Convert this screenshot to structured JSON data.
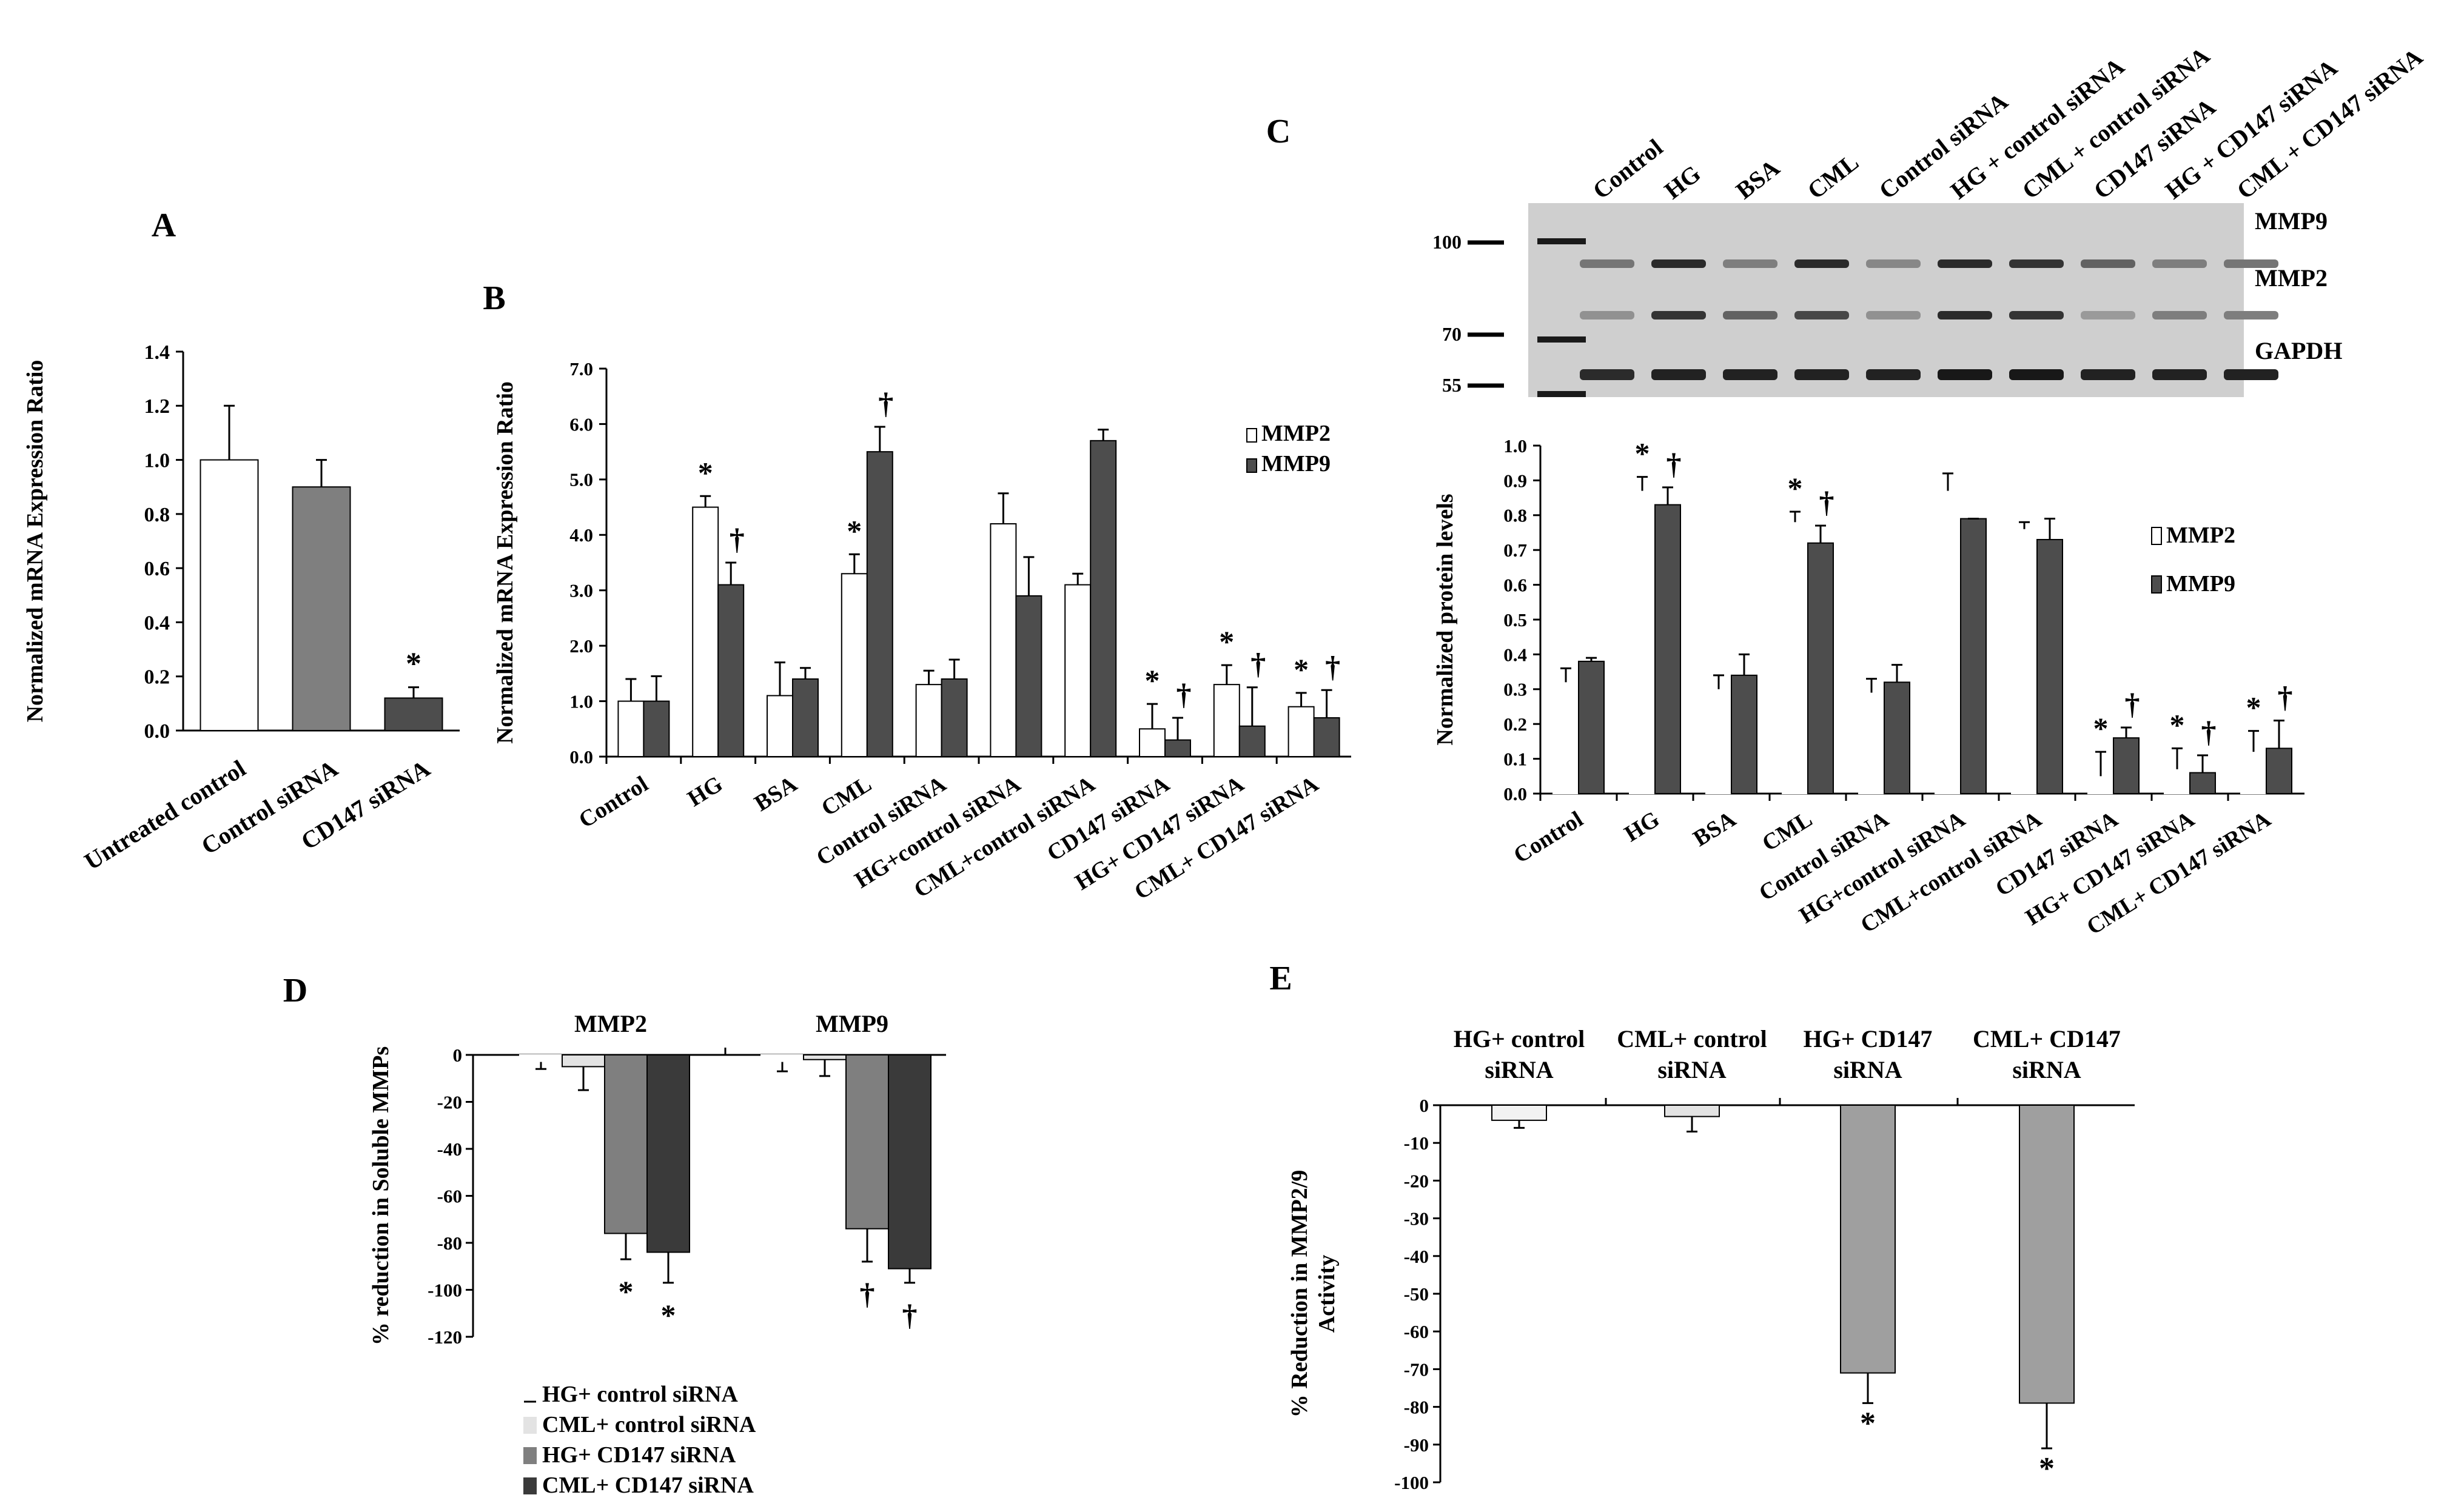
{
  "colors": {
    "white": "#ffffff",
    "gray": "#7f7f7f",
    "dark": "#4d4d4d",
    "mid": "#9f9f9f",
    "darkest": "#3a3a3a",
    "light": "#e3e3e3",
    "verylight": "#f2f2f2",
    "blot_bg": "#cfcfcf",
    "band": "#1a1a1a"
  },
  "chart_data": [
    {
      "panel": "A",
      "type": "bar",
      "ylabel": "Normalized mRNA Expression Ratio",
      "ylim": [
        0,
        1.4
      ],
      "yticks": [
        "0.0",
        "0.2",
        "0.4",
        "0.6",
        "0.8",
        "1.0",
        "1.2",
        "1.4"
      ],
      "categories": [
        "Untreated control",
        "Control siRNA",
        "CD147 siRNA"
      ],
      "values": [
        1.0,
        0.9,
        0.12
      ],
      "errors": [
        0.2,
        0.1,
        0.04
      ],
      "bar_colors": [
        "#ffffff",
        "#7f7f7f",
        "#4d4d4d"
      ],
      "marks": [
        "",
        "",
        "*"
      ]
    },
    {
      "panel": "B",
      "type": "bar",
      "ylabel": "Normalized mRNA Expression Ratio",
      "ylim": [
        0,
        7
      ],
      "yticks": [
        "0.0",
        "1.0",
        "2.0",
        "3.0",
        "4.0",
        "5.0",
        "6.0",
        "7.0"
      ],
      "categories": [
        "Control",
        "HG",
        "BSA",
        "CML",
        "Control siRNA",
        "HG+control siRNA",
        "CML+control siRNA",
        "CD147 siRNA",
        "HG+ CD147 siRNA",
        "CML+ CD147 siRNA"
      ],
      "legend": [
        "MMP2",
        "MMP9"
      ],
      "series": [
        {
          "name": "MMP2",
          "values": [
            1.0,
            4.5,
            1.1,
            3.3,
            1.3,
            4.2,
            3.1,
            0.5,
            1.3,
            0.9
          ],
          "errors": [
            0.4,
            0.2,
            0.6,
            0.35,
            0.25,
            0.55,
            0.2,
            0.45,
            0.35,
            0.25
          ],
          "marks": [
            "",
            "*",
            "",
            "*",
            "",
            "",
            "",
            "*",
            "*",
            "*"
          ]
        },
        {
          "name": "MMP9",
          "values": [
            1.0,
            3.1,
            1.4,
            5.5,
            1.4,
            2.9,
            5.7,
            0.3,
            0.55,
            0.7
          ],
          "errors": [
            0.45,
            0.4,
            0.2,
            0.45,
            0.35,
            0.7,
            0.2,
            0.4,
            0.7,
            0.5
          ],
          "marks": [
            "",
            "†",
            "",
            "†",
            "",
            "",
            "",
            "†",
            "†",
            "†"
          ]
        }
      ]
    },
    {
      "panel": "C",
      "type": "bar",
      "ylabel": "Normalized protein levels",
      "ylim": [
        0,
        1
      ],
      "yticks": [
        "0.0",
        "0.1",
        "0.2",
        "0.3",
        "0.4",
        "0.5",
        "0.6",
        "0.7",
        "0.8",
        "0.9",
        "1.0"
      ],
      "categories": [
        "Control",
        "HG",
        "BSA",
        "CML",
        "Control siRNA",
        "HG+control siRNA",
        "CML+control siRNA",
        "CD147 siRNA",
        "HG+ CD147 siRNA",
        "CML+ CD147 siRNA"
      ],
      "legend": [
        "MMP2",
        "MMP9"
      ],
      "series": [
        {
          "name": "MMP2",
          "values": [
            0.32,
            0.87,
            0.3,
            0.78,
            0.29,
            0.87,
            0.76,
            0.05,
            0.07,
            0.12
          ],
          "errors": [
            0.04,
            0.04,
            0.04,
            0.03,
            0.04,
            0.05,
            0.02,
            0.07,
            0.06,
            0.06
          ],
          "marks": [
            "",
            "*",
            "",
            "*",
            "",
            "",
            "",
            "*",
            "*",
            "*"
          ]
        },
        {
          "name": "MMP9",
          "values": [
            0.38,
            0.83,
            0.34,
            0.72,
            0.32,
            0.79,
            0.73,
            0.16,
            0.06,
            0.13
          ],
          "errors": [
            0.01,
            0.05,
            0.06,
            0.05,
            0.05,
            0.0,
            0.06,
            0.03,
            0.05,
            0.08
          ],
          "marks": [
            "",
            "†",
            "",
            "†",
            "",
            "",
            "",
            "†",
            "†",
            "†"
          ]
        }
      ]
    },
    {
      "panel": "D",
      "type": "bar",
      "ylabel": "% reduction in Soluble MMPs",
      "ylim": [
        -120,
        0
      ],
      "yticks": [
        "-120",
        "-100",
        "-80",
        "-60",
        "-40",
        "-20",
        "0"
      ],
      "categories": [
        "MMP2",
        "MMP9"
      ],
      "legend": [
        "HG+ control siRNA",
        "CML+ control siRNA",
        "HG+ CD147 siRNA",
        "CML+ CD147 siRNA"
      ],
      "series": [
        {
          "name": "HG+ control siRNA",
          "values": [
            -3,
            -3
          ],
          "errors": [
            3,
            4
          ],
          "marks": [
            "",
            ""
          ]
        },
        {
          "name": "CML+ control siRNA",
          "values": [
            -5,
            -2
          ],
          "errors": [
            10,
            7
          ],
          "marks": [
            "",
            ""
          ]
        },
        {
          "name": "HG+ CD147 siRNA",
          "values": [
            -76,
            -74
          ],
          "errors": [
            11,
            14
          ],
          "marks": [
            "*",
            "†"
          ]
        },
        {
          "name": "CML+ CD147 siRNA",
          "values": [
            -84,
            -91
          ],
          "errors": [
            13,
            6
          ],
          "marks": [
            "*",
            "†"
          ]
        }
      ]
    },
    {
      "panel": "E",
      "type": "bar",
      "ylabel": "% Reduction in MMP2/9 Activity",
      "ylim": [
        -100,
        0
      ],
      "yticks": [
        "0",
        "-10",
        "-20",
        "-30",
        "-40",
        "-50",
        "-60",
        "-70",
        "-80",
        "-90",
        "-100"
      ],
      "categories": [
        "HG+ control siRNA",
        "CML+ control siRNA",
        "HG+ CD147 siRNA",
        "CML+ CD147 siRNA"
      ],
      "values": [
        -4,
        -3,
        -71,
        -79
      ],
      "errors": [
        2,
        4,
        8,
        12
      ],
      "marks": [
        "",
        "",
        "*",
        "*"
      ]
    }
  ],
  "blot": {
    "lanes": [
      "Control",
      "HG",
      "BSA",
      "CML",
      "Control siRNA",
      "HG + control siRNA",
      "CML + control siRNA",
      "CD147 siRNA",
      "HG + CD147 siRNA",
      "CML + CD147 siRNA"
    ],
    "markers": [
      "100",
      "70",
      "55"
    ],
    "bands": [
      "MMP9",
      "MMP2",
      "GAPDH"
    ],
    "mmp9_intensity": [
      0.45,
      0.85,
      0.4,
      0.85,
      0.35,
      0.85,
      0.8,
      0.55,
      0.4,
      0.45
    ],
    "mmp2_intensity": [
      0.3,
      0.8,
      0.55,
      0.7,
      0.3,
      0.85,
      0.8,
      0.25,
      0.4,
      0.4
    ],
    "gapdh_intensity": [
      0.85,
      0.9,
      0.9,
      0.9,
      0.9,
      0.95,
      0.95,
      0.9,
      0.9,
      0.9
    ]
  },
  "panel_labels": {
    "A": "A",
    "B": "B",
    "C": "C",
    "D": "D",
    "E": "E"
  },
  "panel_e_headers": [
    [
      "HG+ control",
      "siRNA"
    ],
    [
      "CML+ control",
      "siRNA"
    ],
    [
      "HG+ CD147",
      "siRNA"
    ],
    [
      "CML+ CD147",
      "siRNA"
    ]
  ]
}
